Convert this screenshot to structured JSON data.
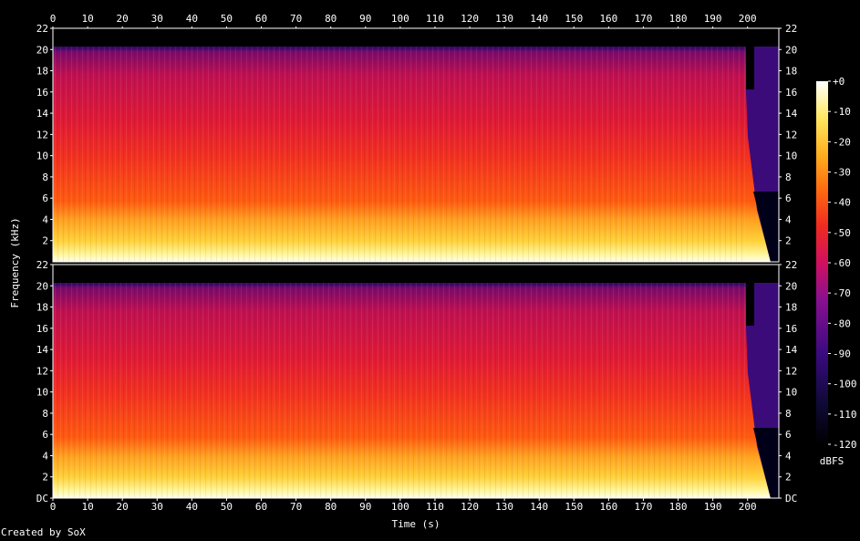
{
  "chart_data": {
    "type": "heatmap",
    "xlabel": "Time (s)",
    "ylabel": "Frequency (kHz)",
    "x_ticks": [
      "0",
      "10",
      "20",
      "30",
      "40",
      "50",
      "60",
      "70",
      "80",
      "90",
      "100",
      "110",
      "120",
      "130",
      "140",
      "150",
      "160",
      "170",
      "180",
      "190",
      "200"
    ],
    "xlim": [
      0,
      209
    ],
    "y_ticks_top": [
      "2",
      "4",
      "6",
      "8",
      "10",
      "12",
      "14",
      "16",
      "18",
      "20",
      "22"
    ],
    "y_ticks_bottom": [
      "DC",
      "2",
      "4",
      "6",
      "8",
      "10",
      "12",
      "14",
      "16",
      "18",
      "20",
      "22"
    ],
    "ylim_khz": [
      0,
      22
    ],
    "channels": 2,
    "colorbar": {
      "label": "dBFS",
      "ticks": [
        "+0",
        "-10",
        "-20",
        "-30",
        "-40",
        "-50",
        "-60",
        "-70",
        "-80",
        "-90",
        "-100",
        "-110",
        "-120"
      ],
      "range": [
        -120,
        0
      ]
    },
    "content_notes": {
      "lowpass_cutoff_khz": 20,
      "audio_end_s": 205,
      "lowpass_drop_at_s": 198
    }
  },
  "footer": {
    "credit": "Created by SoX"
  }
}
